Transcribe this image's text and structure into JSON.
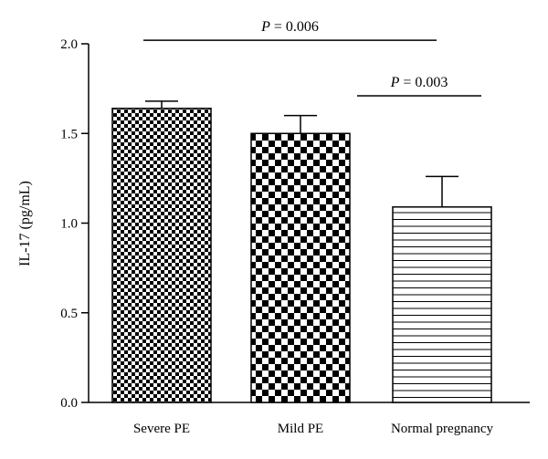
{
  "chart_data": {
    "type": "bar",
    "categories": [
      "Severe PE",
      "Mild PE",
      "Normal pregnancy"
    ],
    "values": [
      1.64,
      1.5,
      1.09
    ],
    "errors": [
      0.04,
      0.1,
      0.17
    ],
    "patterns": [
      "fine-checker",
      "coarse-checker",
      "horizontal-stripes"
    ],
    "title": "",
    "xlabel": "",
    "ylabel": "IL-17 (pg/mL)",
    "ylim": [
      0,
      2.0
    ],
    "yticks": [
      0.0,
      0.5,
      1.0,
      1.5,
      2.0
    ],
    "ytick_labels": [
      "0.0",
      "0.5",
      "1.0",
      "1.5",
      "2.0"
    ],
    "grid": false,
    "annotations": [
      {
        "p_label": "P",
        "p_value": " = 0.006",
        "from": 0,
        "to": 2,
        "y": 2.02
      },
      {
        "p_label": "P",
        "p_value": " = 0.003",
        "from": 1,
        "to": 2,
        "y": 1.71
      }
    ],
    "colors": {
      "ink": "#000000",
      "background": "#ffffff"
    }
  }
}
